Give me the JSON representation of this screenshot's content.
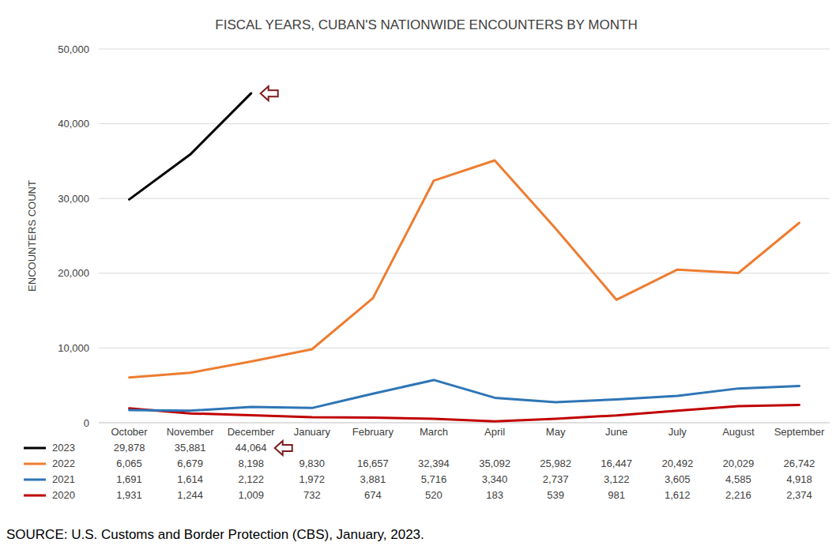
{
  "chart_data": {
    "type": "line",
    "title": "FISCAL YEARS, CUBAN'S NATIONWIDE ENCOUNTERS BY MONTH",
    "y_label": "ENCOUNTERS COUNT",
    "source": "SOURCE: U.S. Customs and Border Protection (CBS), January, 2023.",
    "categories": [
      "October",
      "November",
      "December",
      "January",
      "February",
      "March",
      "April",
      "May",
      "June",
      "July",
      "August",
      "September"
    ],
    "series": [
      {
        "name": "2023",
        "color": "#000000",
        "values": [
          29878,
          35881,
          44064,
          null,
          null,
          null,
          null,
          null,
          null,
          null,
          null,
          null
        ],
        "value_labels": [
          "29,878",
          "35,881",
          "44,064",
          null,
          null,
          null,
          null,
          null,
          null,
          null,
          null,
          null
        ]
      },
      {
        "name": "2022",
        "color": "#ed7d31",
        "values": [
          6065,
          6679,
          8198,
          9830,
          16657,
          32394,
          35092,
          25982,
          16447,
          20492,
          20029,
          26742
        ],
        "value_labels": [
          "6,065",
          "6,679",
          "8,198",
          "9,830",
          "16,657",
          "32,394",
          "35,092",
          "25,982",
          "16,447",
          "20,492",
          "20,029",
          "26,742"
        ]
      },
      {
        "name": "2021",
        "color": "#2e75b6",
        "values": [
          1691,
          1614,
          2122,
          1972,
          3881,
          5716,
          3340,
          2737,
          3122,
          3605,
          4585,
          4918
        ],
        "value_labels": [
          "1,691",
          "1,614",
          "2,122",
          "1,972",
          "3,881",
          "5,716",
          "3,340",
          "2,737",
          "3,122",
          "3,605",
          "4,585",
          "4,918"
        ]
      },
      {
        "name": "2020",
        "color": "#c00000",
        "values": [
          1931,
          1244,
          1009,
          732,
          674,
          520,
          183,
          539,
          981,
          1612,
          2216,
          2374
        ],
        "value_labels": [
          "1,931",
          "1,244",
          "1,009",
          "732",
          "674",
          "520",
          "183",
          "539",
          "981",
          "1,612",
          "2,216",
          "2,374"
        ]
      }
    ],
    "ylim": [
      0,
      50000
    ],
    "yticks": [
      0,
      {
        "value": 10000,
        "label": "10,000"
      },
      {
        "value": 20000,
        "label": "20,000"
      },
      {
        "value": 30000,
        "label": "30,000"
      },
      {
        "value": 40000,
        "label": "40,000"
      },
      {
        "value": 50000,
        "label": "50,000"
      }
    ],
    "grid": true
  }
}
